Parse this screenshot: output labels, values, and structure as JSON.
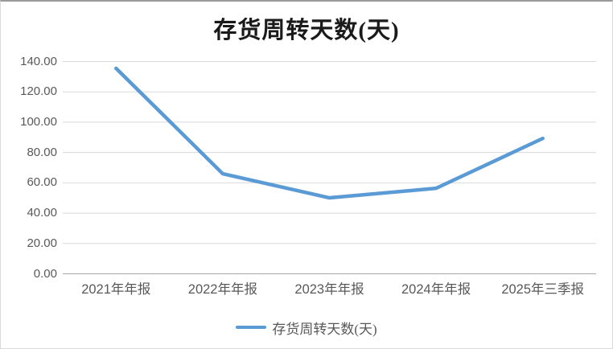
{
  "chart_data": {
    "type": "line",
    "title": "存货周转天数(天)",
    "categories": [
      "2021年年报",
      "2022年年报",
      "2023年年报",
      "2024年年报",
      "2025年三季报"
    ],
    "series": [
      {
        "name": "存货周转天数(天)",
        "color": "#5b9bd5",
        "values": [
          135.5,
          66.0,
          50.1,
          56.4,
          89.3
        ]
      }
    ],
    "xlabel": "",
    "ylabel": "",
    "ylim": [
      0,
      140
    ],
    "yticks": [
      0,
      20,
      40,
      60,
      80,
      100,
      120,
      140
    ],
    "ytick_labels": [
      "0.00",
      "20.00",
      "40.00",
      "60.00",
      "80.00",
      "100.00",
      "120.00",
      "140.00"
    ],
    "grid": true,
    "legend_position": "bottom",
    "colors": {
      "series_line": "#5b9bd5",
      "gridline": "#d9d9d9",
      "axis_line": "#a6a6a6",
      "tick_label": "#595959",
      "title": "#1a1a1a",
      "background": "#ffffff"
    }
  }
}
